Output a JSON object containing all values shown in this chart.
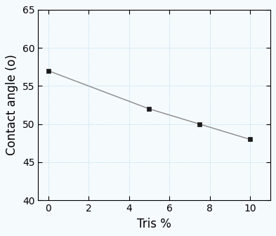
{
  "x": [
    0,
    5,
    7.5,
    10
  ],
  "y": [
    57,
    52,
    50,
    48
  ],
  "line_color": "#888888",
  "marker_color": "#1a1a1a",
  "marker_style": "s",
  "marker_size": 5,
  "xlabel": "Tris %",
  "ylabel": "Contact angle (o)",
  "xlim": [
    -0.5,
    11
  ],
  "ylim": [
    40,
    65
  ],
  "xticks": [
    0,
    2,
    4,
    6,
    8,
    10
  ],
  "yticks": [
    40,
    45,
    50,
    55,
    60,
    65
  ],
  "grid_color": "#a8d8e8",
  "grid_style": ":",
  "grid_linewidth": 0.7,
  "bg_color": "#f5fafd",
  "xlabel_fontsize": 12,
  "ylabel_fontsize": 12,
  "tick_fontsize": 10,
  "linewidth": 1.0
}
